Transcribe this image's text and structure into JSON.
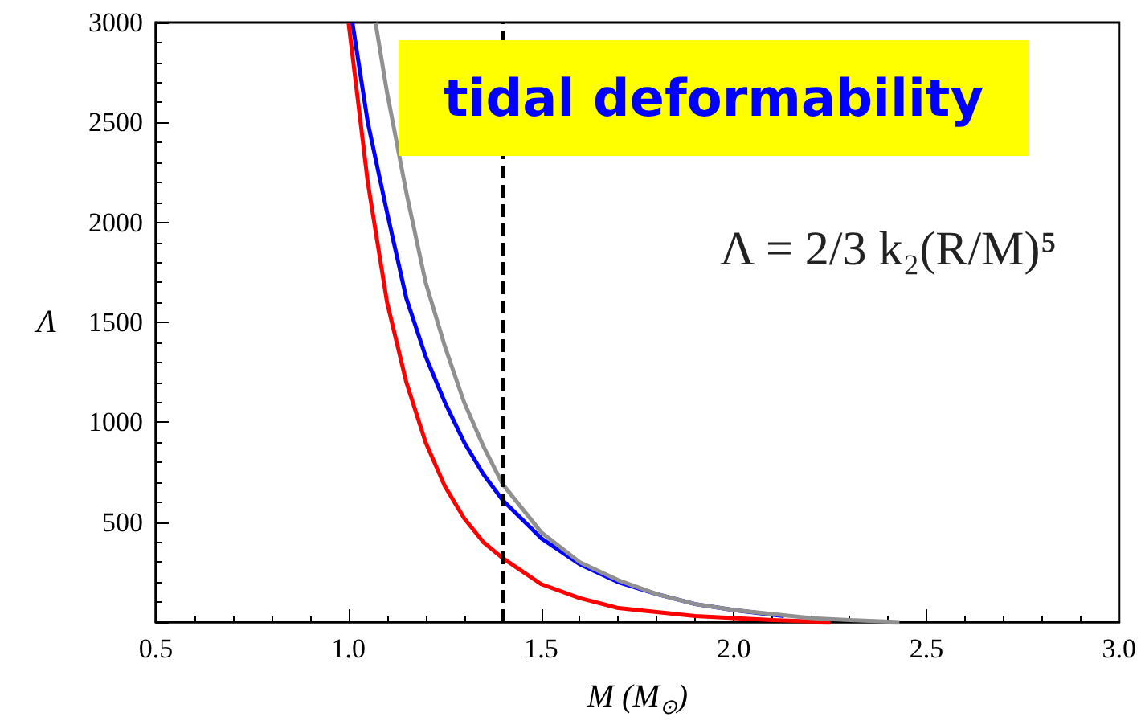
{
  "chart_data": {
    "type": "line",
    "xlabel": "M (M$_{⊙}$)",
    "ylabel": "Λ",
    "xlim": [
      0.5,
      3.0
    ],
    "xticks": [
      0.5,
      {
        "value": 1,
        "label": "1.0"
      },
      1.5,
      {
        "value": 2,
        "label": "2.0"
      },
      2.5,
      {
        "value": 3,
        "label": "3.0"
      }
    ],
    "ylim": [
      0,
      3000
    ],
    "yticks": [
      {
        "value": 0,
        "label": null
      },
      500,
      1000,
      1500,
      2000,
      2500,
      3000
    ],
    "grid": false,
    "marker": "none",
    "line_style": "solid",
    "series": [
      {
        "color": "#ff0000",
        "x": [
          1.0,
          1.05,
          1.1,
          1.15,
          1.2,
          1.25,
          1.3,
          1.35,
          1.4,
          1.5,
          1.6,
          1.7,
          1.8,
          1.9,
          2.0,
          2.1,
          2.25
        ],
        "values": [
          3000,
          2200,
          1600,
          1200,
          900,
          680,
          520,
          400,
          320,
          190,
          120,
          70,
          50,
          30,
          20,
          10,
          0
        ]
      },
      {
        "color": "#0000ff",
        "x": [
          1.01,
          1.05,
          1.1,
          1.15,
          1.2,
          1.25,
          1.3,
          1.35,
          1.4,
          1.5,
          1.6,
          1.7,
          1.8,
          1.9,
          2.0,
          2.13
        ],
        "values": [
          3000,
          2500,
          2050,
          1620,
          1330,
          1100,
          900,
          740,
          610,
          420,
          290,
          200,
          140,
          90,
          60,
          30
        ]
      },
      {
        "color": "#909090",
        "x": [
          1.07,
          1.1,
          1.15,
          1.2,
          1.25,
          1.3,
          1.35,
          1.4,
          1.5,
          1.6,
          1.7,
          1.8,
          1.9,
          2.0,
          2.1,
          2.2,
          2.3,
          2.43
        ],
        "values": [
          3000,
          2650,
          2150,
          1700,
          1380,
          1100,
          880,
          690,
          450,
          300,
          210,
          140,
          90,
          60,
          40,
          20,
          10,
          0
        ]
      }
    ],
    "ref_lines": [
      {
        "axis": "x",
        "value": 1.4,
        "color": "#000000",
        "line_style": "dashed"
      }
    ],
    "annotations": [
      "tidal deformability",
      "Λ = 2/3 k₂(R/M)⁵"
    ]
  }
}
